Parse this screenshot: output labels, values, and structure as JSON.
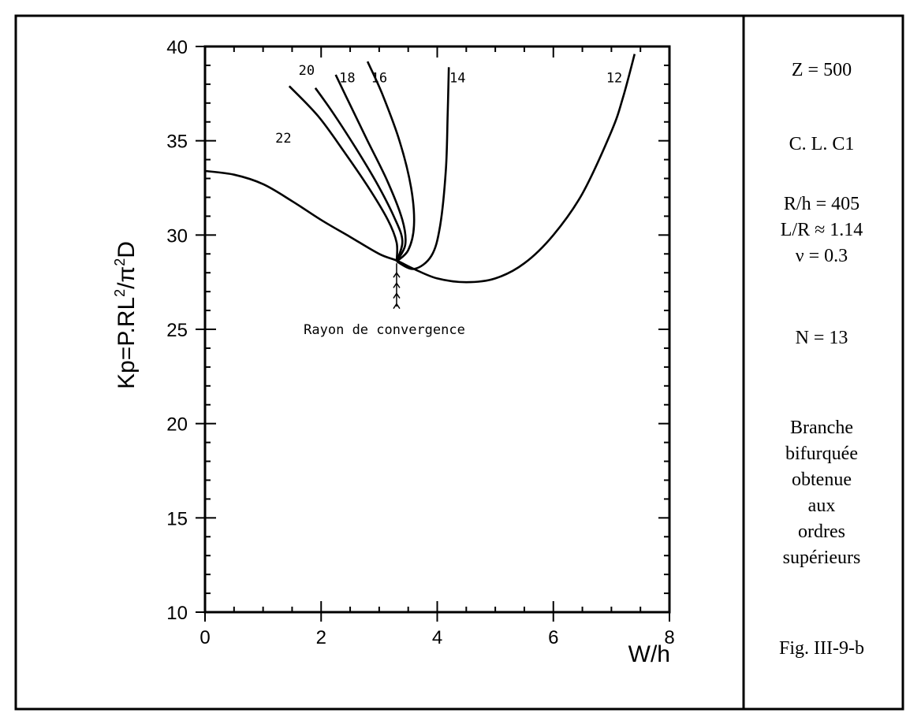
{
  "chart_data": {
    "type": "line",
    "xlabel": "W/h",
    "ylabel": "Kp=P.RL²/π²D",
    "ylabel_base": "Kp=P.RL",
    "ylabel_mid": "/π",
    "ylabel_end": "D",
    "ylabel_sup": "2",
    "xlim": [
      0,
      8
    ],
    "ylim": [
      10,
      40
    ],
    "x_ticks": [
      "0",
      "2",
      "4",
      "6",
      "8"
    ],
    "y_ticks": [
      "10",
      "15",
      "20",
      "25",
      "30",
      "35",
      "40"
    ],
    "grid": false,
    "series": [
      {
        "name": "12",
        "x": [
          0.0,
          0.5,
          1.0,
          1.5,
          2.0,
          2.5,
          3.0,
          3.3,
          3.6,
          4.0,
          4.5,
          5.0,
          5.5,
          6.0,
          6.5,
          7.0,
          7.2,
          7.4
        ],
        "y": [
          33.4,
          33.2,
          32.7,
          31.8,
          30.8,
          29.9,
          29.0,
          28.65,
          28.2,
          27.7,
          27.5,
          27.7,
          28.5,
          30.0,
          32.2,
          35.5,
          37.3,
          39.6
        ]
      },
      {
        "name": "14",
        "x": [
          3.3,
          3.6,
          3.9,
          4.05,
          4.15,
          4.18,
          4.2
        ],
        "y": [
          28.6,
          28.2,
          28.9,
          30.5,
          33.5,
          36.5,
          38.9
        ]
      },
      {
        "name": "16",
        "x": [
          3.3,
          3.5,
          3.6,
          3.55,
          3.35,
          3.05,
          2.8
        ],
        "y": [
          28.6,
          29.2,
          30.5,
          32.5,
          35.0,
          37.5,
          39.2
        ]
      },
      {
        "name": "18",
        "x": [
          3.3,
          3.45,
          3.4,
          3.15,
          2.8,
          2.5,
          2.25
        ],
        "y": [
          28.6,
          29.5,
          30.8,
          32.8,
          35.0,
          36.9,
          38.5
        ]
      },
      {
        "name": "20",
        "x": [
          3.3,
          3.4,
          3.25,
          2.95,
          2.6,
          2.2,
          1.9
        ],
        "y": [
          28.6,
          29.7,
          31.0,
          32.8,
          34.6,
          36.5,
          37.8
        ]
      },
      {
        "name": "22",
        "x": [
          3.3,
          3.3,
          3.15,
          2.8,
          2.4,
          1.95,
          1.45
        ],
        "y": [
          28.6,
          29.6,
          30.8,
          32.6,
          34.4,
          36.3,
          37.9
        ]
      }
    ],
    "curve_labels": [
      {
        "text": "12",
        "x": 7.05,
        "y": 38.1
      },
      {
        "text": "14",
        "x": 4.35,
        "y": 38.1
      },
      {
        "text": "16",
        "x": 3.0,
        "y": 38.1
      },
      {
        "text": "18",
        "x": 2.45,
        "y": 38.1
      },
      {
        "text": "20",
        "x": 1.75,
        "y": 38.5
      },
      {
        "text": "22",
        "x": 1.35,
        "y": 34.9
      }
    ],
    "annotation": {
      "text": "Rayon de convergence",
      "x": 1.7,
      "y": 25.0,
      "arrow_x": 3.3,
      "arrow_from_y": 26.2,
      "arrow_to_y": 28.5
    }
  },
  "side_panel": {
    "z": "Z = 500",
    "cl": "C. L.  C1",
    "rh": "R/h = 405",
    "lr": "L/R ≈ 1.14",
    "nu": "ν  = 0.3",
    "n": "N  = 13",
    "desc_lines": [
      "Branche",
      "bifurquée",
      "obtenue",
      "aux",
      "ordres",
      "supérieurs"
    ],
    "fig": "Fig. III-9-b"
  }
}
